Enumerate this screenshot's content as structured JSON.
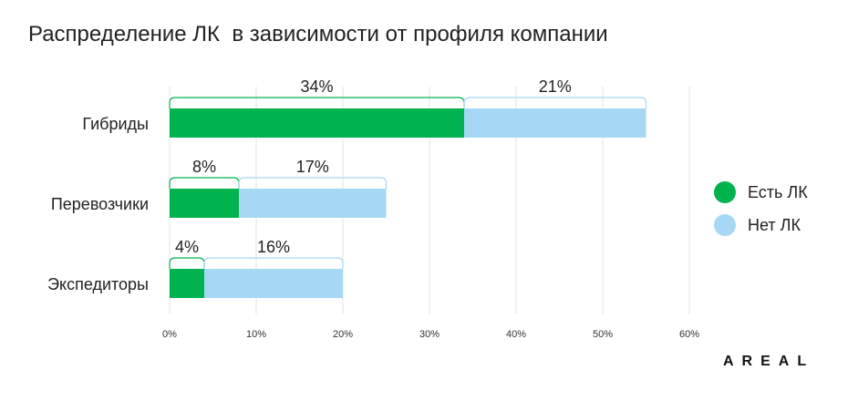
{
  "title": "Распределение ЛК  в зависимости от профиля компании",
  "brand": "AREAL",
  "colors": {
    "has": "#00b34f",
    "none": "#a6d8f5",
    "grid": "#e3e3e3",
    "text": "#222222"
  },
  "legend": [
    {
      "label": "Есть ЛК",
      "color": "#00b34f"
    },
    {
      "label": "Нет ЛК",
      "color": "#a6d8f5"
    }
  ],
  "chart_data": {
    "type": "bar",
    "orientation": "horizontal",
    "stacked": true,
    "categories": [
      "Гибриды",
      "Перевозчики",
      "Экспедиторы"
    ],
    "series": [
      {
        "name": "Есть ЛК",
        "values": [
          34,
          8,
          4
        ],
        "labels": [
          "34%",
          "8%",
          "4%"
        ]
      },
      {
        "name": "Нет ЛК",
        "values": [
          21,
          17,
          16
        ],
        "labels": [
          "21%",
          "17%",
          "16%"
        ]
      }
    ],
    "xlim": [
      0,
      60
    ],
    "xticks": [
      "0%",
      "10%",
      "20%",
      "30%",
      "40%",
      "50%",
      "60%"
    ],
    "grid": true,
    "legend_position": "right"
  }
}
